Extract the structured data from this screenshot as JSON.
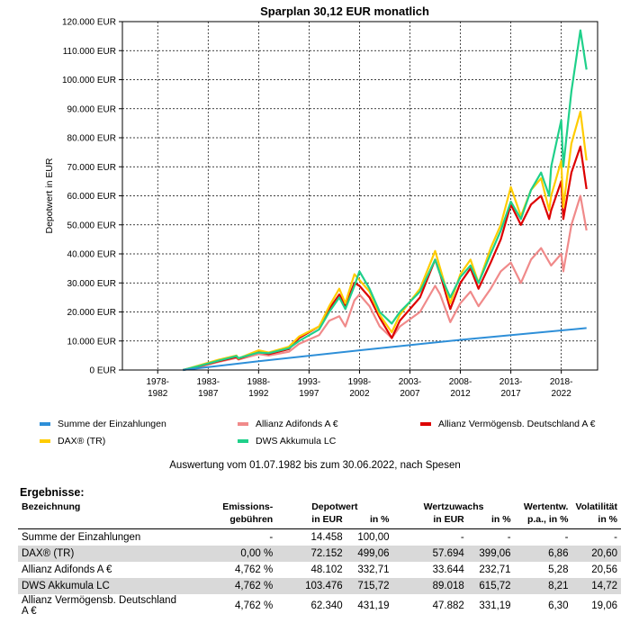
{
  "chart_data": {
    "type": "line",
    "title": "Sparplan 30,12 EUR monatlich",
    "ylabel": "Depotwert in EUR",
    "xlabel": "",
    "ylim": [
      0,
      120000
    ],
    "xlim": [
      1976.5,
      2023.6
    ],
    "grid": true,
    "y_ticks": [
      {
        "value": 0,
        "label": "0 EUR"
      },
      {
        "value": 10000,
        "label": "10.000 EUR"
      },
      {
        "value": 20000,
        "label": "20.000 EUR"
      },
      {
        "value": 30000,
        "label": "30.000 EUR"
      },
      {
        "value": 40000,
        "label": "40.000 EUR"
      },
      {
        "value": 50000,
        "label": "50.000 EUR"
      },
      {
        "value": 60000,
        "label": "60.000 EUR"
      },
      {
        "value": 70000,
        "label": "70.000 EUR"
      },
      {
        "value": 80000,
        "label": "80.000 EUR"
      },
      {
        "value": 90000,
        "label": "90.000 EUR"
      },
      {
        "value": 100000,
        "label": "100.000 EUR"
      },
      {
        "value": 110000,
        "label": "110.000 EUR"
      },
      {
        "value": 120000,
        "label": "120.000 EUR"
      }
    ],
    "x_ticks": [
      {
        "value": 1980,
        "line1": "1978-",
        "line2": "1982"
      },
      {
        "value": 1985,
        "line1": "1983-",
        "line2": "1987"
      },
      {
        "value": 1990,
        "line1": "1988-",
        "line2": "1992"
      },
      {
        "value": 1995,
        "line1": "1993-",
        "line2": "1997"
      },
      {
        "value": 2000,
        "line1": "1998-",
        "line2": "2002"
      },
      {
        "value": 2005,
        "line1": "2003-",
        "line2": "2007"
      },
      {
        "value": 2010,
        "line1": "2008-",
        "line2": "2012"
      },
      {
        "value": 2015,
        "line1": "2013-",
        "line2": "2017"
      },
      {
        "value": 2020,
        "line1": "2018-",
        "line2": "2022"
      }
    ],
    "legend_position": "bottom",
    "series": [
      {
        "name": "Summe der Einzahlungen",
        "color": "#2e8fd8",
        "points": [
          [
            1982.5,
            0
          ],
          [
            1990,
            3000
          ],
          [
            2000,
            6800
          ],
          [
            2010,
            10400
          ],
          [
            2022.5,
            14458
          ]
        ]
      },
      {
        "name": "Allianz Adifonds A €",
        "color": "#f08a8a",
        "points": [
          [
            1982.5,
            0
          ],
          [
            1984,
            1000
          ],
          [
            1986,
            2800
          ],
          [
            1987.8,
            4200
          ],
          [
            1988,
            3600
          ],
          [
            1990,
            5500
          ],
          [
            1991,
            5000
          ],
          [
            1993,
            6300
          ],
          [
            1994,
            9000
          ],
          [
            1996,
            12000
          ],
          [
            1997,
            17000
          ],
          [
            1998,
            18500
          ],
          [
            1998.6,
            15000
          ],
          [
            1999.5,
            24000
          ],
          [
            2000,
            26000
          ],
          [
            2001,
            22000
          ],
          [
            2002,
            15000
          ],
          [
            2003.2,
            11000
          ],
          [
            2004,
            15000
          ],
          [
            2006,
            20000
          ],
          [
            2007.5,
            29000
          ],
          [
            2008,
            26000
          ],
          [
            2009,
            16500
          ],
          [
            2010,
            23000
          ],
          [
            2011,
            27000
          ],
          [
            2011.8,
            22000
          ],
          [
            2013,
            28000
          ],
          [
            2014,
            34000
          ],
          [
            2015,
            37000
          ],
          [
            2016,
            30000
          ],
          [
            2017,
            38000
          ],
          [
            2018,
            42000
          ],
          [
            2019,
            36000
          ],
          [
            2020,
            40000
          ],
          [
            2020.2,
            34000
          ],
          [
            2021,
            50000
          ],
          [
            2021.9,
            60000
          ],
          [
            2022.5,
            48102
          ]
        ]
      },
      {
        "name": "Allianz Vermögensb. Deutschland A €",
        "color": "#dd0000",
        "points": [
          [
            1982.5,
            0
          ],
          [
            1984,
            1200
          ],
          [
            1986,
            3000
          ],
          [
            1987.8,
            4500
          ],
          [
            1988,
            3800
          ],
          [
            1990,
            6200
          ],
          [
            1991,
            5500
          ],
          [
            1993,
            7200
          ],
          [
            1994,
            11000
          ],
          [
            1996,
            15000
          ],
          [
            1997,
            21000
          ],
          [
            1998,
            26000
          ],
          [
            1998.6,
            22000
          ],
          [
            1999.5,
            30000
          ],
          [
            2000,
            29000
          ],
          [
            2001,
            25000
          ],
          [
            2002,
            18000
          ],
          [
            2003.2,
            11000
          ],
          [
            2004,
            17000
          ],
          [
            2006,
            25000
          ],
          [
            2007.5,
            38000
          ],
          [
            2008,
            33000
          ],
          [
            2009,
            21000
          ],
          [
            2010,
            30000
          ],
          [
            2011,
            35000
          ],
          [
            2011.8,
            28000
          ],
          [
            2013,
            37000
          ],
          [
            2014,
            45000
          ],
          [
            2015,
            57000
          ],
          [
            2016,
            50000
          ],
          [
            2017,
            57000
          ],
          [
            2018,
            60000
          ],
          [
            2018.8,
            52000
          ],
          [
            2019,
            55000
          ],
          [
            2020,
            65000
          ],
          [
            2020.2,
            52000
          ],
          [
            2021,
            68000
          ],
          [
            2021.9,
            77000
          ],
          [
            2022.5,
            62340
          ]
        ]
      },
      {
        "name": "DAX® (TR)",
        "color": "#ffcc00",
        "points": [
          [
            1982.5,
            0
          ],
          [
            1984,
            1500
          ],
          [
            1986,
            3500
          ],
          [
            1987.8,
            5000
          ],
          [
            1988,
            4000
          ],
          [
            1990,
            6800
          ],
          [
            1991,
            6000
          ],
          [
            1993,
            8000
          ],
          [
            1994,
            11500
          ],
          [
            1996,
            15000
          ],
          [
            1997,
            22000
          ],
          [
            1998,
            28000
          ],
          [
            1998.6,
            23000
          ],
          [
            1999.5,
            33000
          ],
          [
            2000,
            31000
          ],
          [
            2001,
            27000
          ],
          [
            2002,
            19000
          ],
          [
            2003.2,
            13000
          ],
          [
            2004,
            19000
          ],
          [
            2006,
            28000
          ],
          [
            2007.5,
            41000
          ],
          [
            2008,
            35000
          ],
          [
            2009,
            23000
          ],
          [
            2010,
            33000
          ],
          [
            2011,
            38000
          ],
          [
            2011.8,
            30000
          ],
          [
            2013,
            42000
          ],
          [
            2014,
            50000
          ],
          [
            2015,
            63000
          ],
          [
            2016,
            53000
          ],
          [
            2017,
            62000
          ],
          [
            2018,
            66000
          ],
          [
            2018.8,
            55000
          ],
          [
            2019,
            60000
          ],
          [
            2020,
            72000
          ],
          [
            2020.2,
            56000
          ],
          [
            2021,
            78000
          ],
          [
            2021.9,
            89000
          ],
          [
            2022.5,
            72152
          ]
        ]
      },
      {
        "name": "DWS Akkumula LC",
        "color": "#1fd08a",
        "points": [
          [
            1982.5,
            0
          ],
          [
            1984,
            1300
          ],
          [
            1986,
            3200
          ],
          [
            1987.8,
            4800
          ],
          [
            1988,
            4100
          ],
          [
            1990,
            6000
          ],
          [
            1991,
            5800
          ],
          [
            1993,
            7500
          ],
          [
            1994,
            10000
          ],
          [
            1996,
            14000
          ],
          [
            1997,
            20000
          ],
          [
            1998,
            25000
          ],
          [
            1998.6,
            21000
          ],
          [
            1999.5,
            29000
          ],
          [
            2000,
            34000
          ],
          [
            2001,
            28000
          ],
          [
            2002,
            20000
          ],
          [
            2003.2,
            16000
          ],
          [
            2004,
            20000
          ],
          [
            2006,
            27000
          ],
          [
            2007.5,
            38000
          ],
          [
            2008,
            33000
          ],
          [
            2009,
            25000
          ],
          [
            2010,
            32000
          ],
          [
            2011,
            36000
          ],
          [
            2011.8,
            30000
          ],
          [
            2013,
            40000
          ],
          [
            2014,
            48000
          ],
          [
            2015,
            58000
          ],
          [
            2016,
            52000
          ],
          [
            2017,
            62000
          ],
          [
            2018,
            68000
          ],
          [
            2018.8,
            60000
          ],
          [
            2019,
            70000
          ],
          [
            2020,
            86000
          ],
          [
            2020.2,
            70000
          ],
          [
            2021,
            96000
          ],
          [
            2021.9,
            117000
          ],
          [
            2022.5,
            103476
          ]
        ]
      }
    ]
  },
  "legend": {
    "items": [
      {
        "label": "Summe der Einzahlungen",
        "color": "#2e8fd8"
      },
      {
        "label": "Allianz Adifonds A €",
        "color": "#f08a8a"
      },
      {
        "label": "Allianz Vermögensb. Deutschland A €",
        "color": "#dd0000"
      },
      {
        "label": "DAX® (TR)",
        "color": "#ffcc00"
      },
      {
        "label": "DWS Akkumula LC",
        "color": "#1fd08a"
      }
    ]
  },
  "note": "Auswertung vom 01.07.1982 bis zum 30.06.2022, nach Spesen",
  "results": {
    "title": "Ergebnisse:",
    "headers": {
      "bezeichnung": "Bezeichnung",
      "emission1": "Emissions-",
      "emission2": "gebühren",
      "depotwert": "Depotwert",
      "wertzuwachs": "Wertzuwachs",
      "wertentw1": "Wertentw.",
      "wertentw2": "p.a., in %",
      "volatilitaet1": "Volatilität",
      "volatilitaet2": "in %",
      "in_eur": "in EUR",
      "in_pct": "in %"
    },
    "rows": [
      {
        "name": "Summe der Einzahlungen",
        "fee": "-",
        "dep_eur": "14.458",
        "dep_pct": "100,00",
        "wz_eur": "-",
        "wz_pct": "-",
        "pa": "-",
        "vol": "-"
      },
      {
        "name": "DAX® (TR)",
        "fee": "0,00 %",
        "dep_eur": "72.152",
        "dep_pct": "499,06",
        "wz_eur": "57.694",
        "wz_pct": "399,06",
        "pa": "6,86",
        "vol": "20,60"
      },
      {
        "name": "Allianz Adifonds A €",
        "fee": "4,762 %",
        "dep_eur": "48.102",
        "dep_pct": "332,71",
        "wz_eur": "33.644",
        "wz_pct": "232,71",
        "pa": "5,28",
        "vol": "20,56"
      },
      {
        "name": "DWS Akkumula LC",
        "fee": "4,762 %",
        "dep_eur": "103.476",
        "dep_pct": "715,72",
        "wz_eur": "89.018",
        "wz_pct": "615,72",
        "pa": "8,21",
        "vol": "14,72"
      },
      {
        "name": "Allianz Vermögensb. Deutschland A €",
        "fee": "4,762 %",
        "dep_eur": "62.340",
        "dep_pct": "431,19",
        "wz_eur": "47.882",
        "wz_pct": "331,19",
        "pa": "6,30",
        "vol": "19,06"
      }
    ]
  }
}
